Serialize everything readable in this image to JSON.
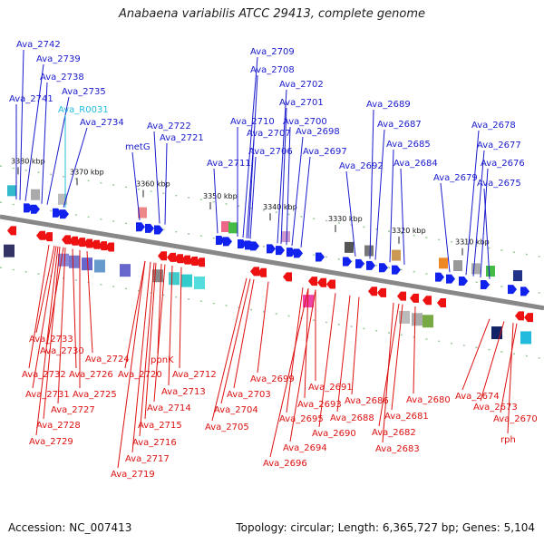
{
  "title": "Anabaena variabilis ATCC 29413, complete genome",
  "footer": {
    "accession": "Accession: NC_007413",
    "meta": "Topology: circular; Length: 6,365,727 bp; Genes: 5,104"
  },
  "colors": {
    "top_label": "#1a1acc",
    "rna_label": "#22bbdd",
    "bottom_label": "#dd1111",
    "backbone": "#888888",
    "tick": "#1a8a1a"
  },
  "ruler": [
    "3380 kbp",
    "3370 kbp",
    "3360 kbp",
    "3350 kbp",
    "3340 kbp",
    "3330 kbp",
    "3320 kbp",
    "3310 kbp"
  ],
  "top_genes": [
    "Ava_2742",
    "Ava_2739",
    "Ava_2738",
    "Ava_2741",
    "Ava_2735",
    "Ava_R0031",
    "Ava_2734",
    "metG",
    "Ava_2722",
    "Ava_2721",
    "Ava_2709",
    "Ava_2708",
    "Ava_2702",
    "Ava_2701",
    "Ava_2710",
    "Ava_2700",
    "Ava_2707",
    "Ava_2698",
    "Ava_2711",
    "Ava_2706",
    "Ava_2697",
    "Ava_2689",
    "Ava_2687",
    "Ava_2685",
    "Ava_2692",
    "Ava_2684",
    "Ava_2678",
    "Ava_2677",
    "Ava_2676",
    "Ava_2679",
    "Ava_2675"
  ],
  "bottom_genes": [
    "Ava_2733",
    "Ava_2730",
    "Ava_2724",
    "Ava_2732",
    "Ava_2726",
    "ppnK",
    "Ava_2720",
    "Ava_2712",
    "Ava_2731",
    "Ava_2725",
    "Ava_2713",
    "Ava_2727",
    "Ava_2714",
    "Ava_2728",
    "Ava_2715",
    "Ava_2729",
    "Ava_2716",
    "Ava_2717",
    "Ava_2719",
    "Ava_2699",
    "Ava_2703",
    "Ava_2704",
    "Ava_2705",
    "Ava_2691",
    "Ava_2693",
    "Ava_2695",
    "Ava_2694",
    "Ava_2696",
    "Ava_2686",
    "Ava_2688",
    "Ava_2690",
    "Ava_2680",
    "Ava_2681",
    "Ava_2682",
    "Ava_2683",
    "Ava_2674",
    "Ava_2673",
    "Ava_2670",
    "rph"
  ]
}
